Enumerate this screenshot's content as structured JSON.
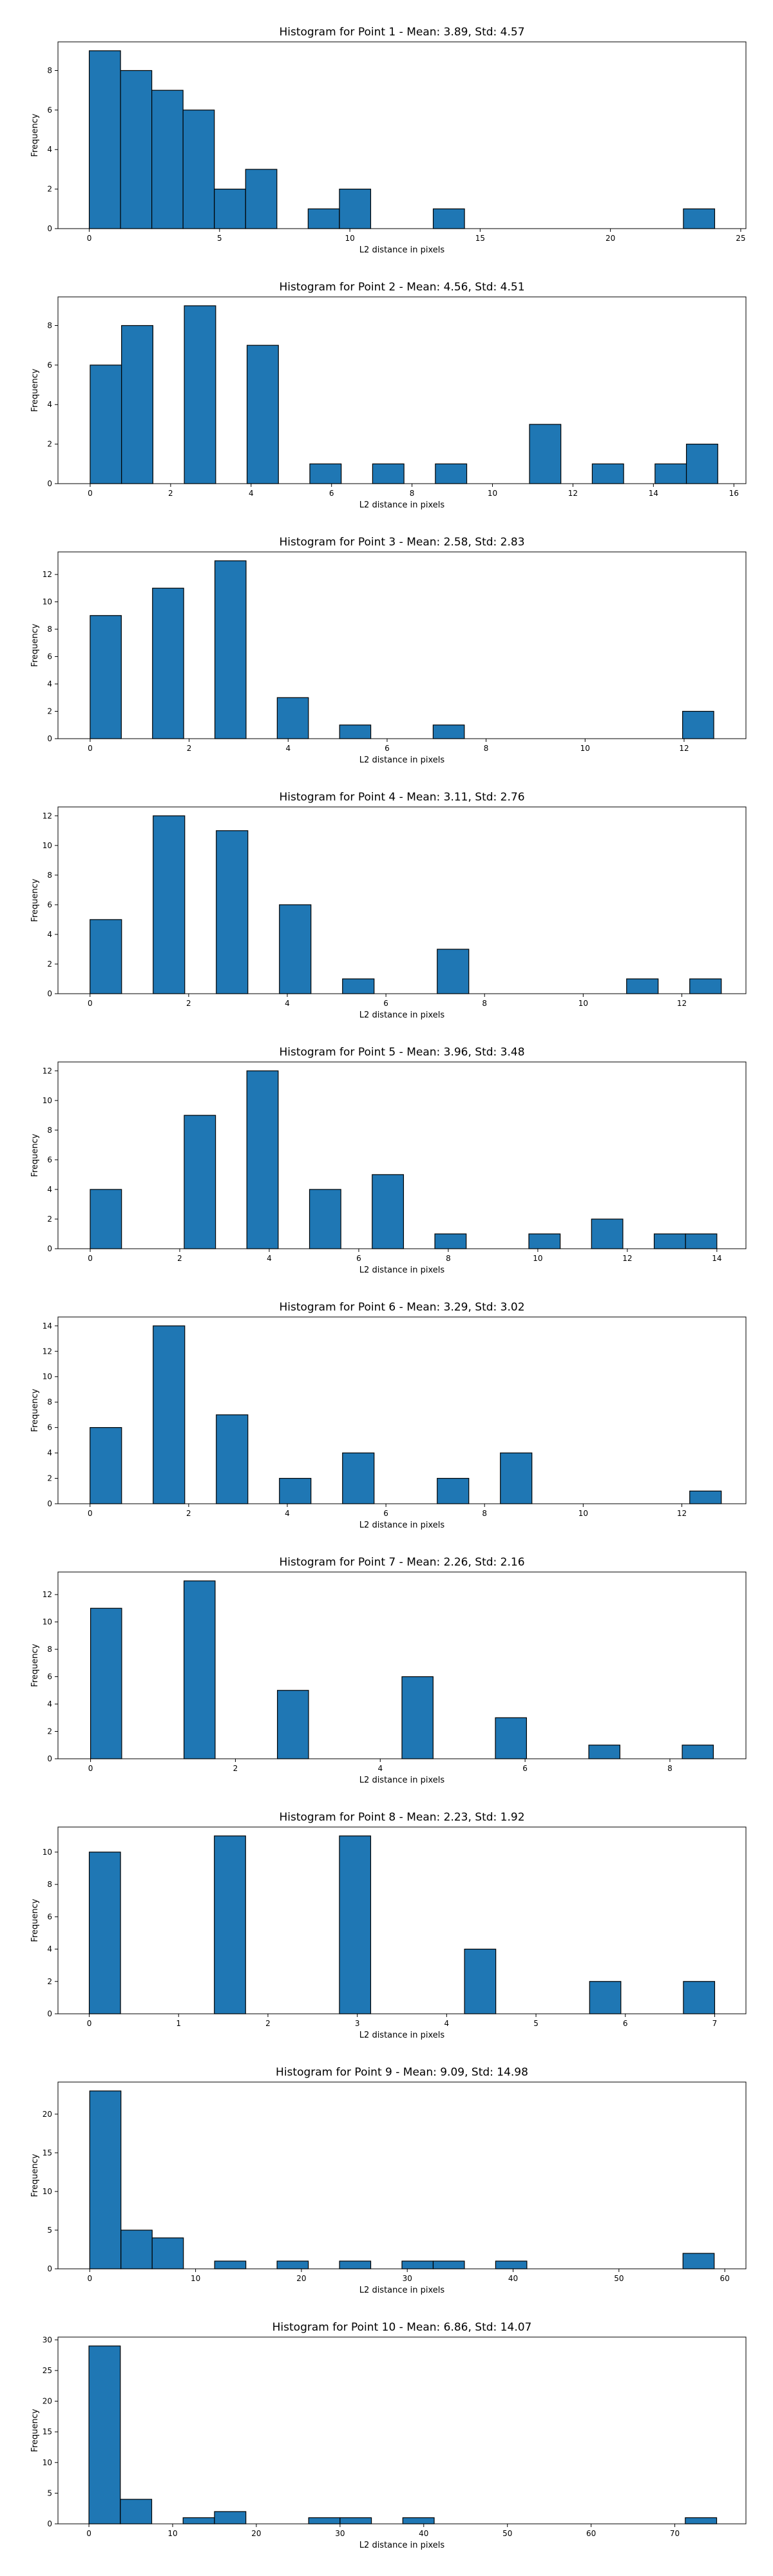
{
  "figure": {
    "type": "histogram-grid",
    "bar_color": "#1f77b4",
    "edge_color": "#000000"
  },
  "chart_data": [
    {
      "type": "bar",
      "title": "Histogram for Point 1 - Mean: 3.89, Std: 4.57",
      "xlabel": "L2 distance in pixels",
      "ylabel": "Frequency",
      "xlim": [
        -1.2,
        25.2
      ],
      "ylim": [
        0,
        9.45
      ],
      "xticks": [
        0,
        5,
        10,
        15,
        20,
        25
      ],
      "yticks": [
        0,
        2,
        4,
        6,
        8
      ],
      "bin_start": 0.0,
      "bin_width": 1.2,
      "counts": [
        9,
        8,
        7,
        6,
        2,
        3,
        0,
        1,
        2,
        0,
        0,
        1,
        0,
        0,
        0,
        0,
        0,
        0,
        0,
        1
      ],
      "grid": false
    },
    {
      "type": "bar",
      "title": "Histogram for Point 2 - Mean: 4.56, Std: 4.51",
      "xlabel": "L2 distance in pixels",
      "ylabel": "Frequency",
      "xlim": [
        -0.8,
        16.3
      ],
      "ylim": [
        0,
        9.45
      ],
      "xticks": [
        0,
        2,
        4,
        6,
        8,
        10,
        12,
        14,
        16
      ],
      "yticks": [
        0,
        2,
        4,
        6,
        8
      ],
      "bin_start": 0.0,
      "bin_width": 0.78,
      "counts": [
        6,
        8,
        0,
        9,
        0,
        7,
        0,
        1,
        0,
        1,
        0,
        1,
        0,
        0,
        3,
        0,
        1,
        0,
        1,
        2
      ],
      "grid": false
    },
    {
      "type": "bar",
      "title": "Histogram for Point 3 - Mean: 2.58, Std: 2.83",
      "xlabel": "L2 distance in pixels",
      "ylabel": "Frequency",
      "xlim": [
        -0.65,
        13.25
      ],
      "ylim": [
        0,
        13.65
      ],
      "xticks": [
        0,
        2,
        4,
        6,
        8,
        10,
        12
      ],
      "yticks": [
        0,
        2,
        4,
        6,
        8,
        10,
        12
      ],
      "bin_start": 0.0,
      "bin_width": 0.63,
      "counts": [
        9,
        0,
        11,
        0,
        13,
        0,
        3,
        0,
        1,
        0,
        0,
        1,
        0,
        0,
        0,
        0,
        0,
        0,
        0,
        2
      ],
      "grid": false
    },
    {
      "type": "bar",
      "title": "Histogram for Point 4 - Mean: 3.11, Std: 2.76",
      "xlabel": "L2 distance in pixels",
      "ylabel": "Frequency",
      "xlim": [
        -0.65,
        13.3
      ],
      "ylim": [
        0,
        12.6
      ],
      "xticks": [
        0,
        2,
        4,
        6,
        8,
        10,
        12
      ],
      "yticks": [
        0,
        2,
        4,
        6,
        8,
        10,
        12
      ],
      "bin_start": 0.0,
      "bin_width": 0.64,
      "counts": [
        5,
        0,
        12,
        0,
        11,
        0,
        6,
        0,
        1,
        0,
        0,
        3,
        0,
        0,
        0,
        0,
        0,
        1,
        0,
        1
      ],
      "grid": false
    },
    {
      "type": "bar",
      "title": "Histogram for Point 5 - Mean: 3.96, Std: 3.48",
      "xlabel": "L2 distance in pixels",
      "ylabel": "Frequency",
      "xlim": [
        -0.72,
        14.65
      ],
      "ylim": [
        0,
        12.6
      ],
      "xticks": [
        0,
        2,
        4,
        6,
        8,
        10,
        12,
        14
      ],
      "yticks": [
        0,
        2,
        4,
        6,
        8,
        10,
        12
      ],
      "bin_start": 0.0,
      "bin_width": 0.7,
      "counts": [
        4,
        0,
        0,
        9,
        0,
        12,
        0,
        4,
        0,
        5,
        0,
        1,
        0,
        0,
        1,
        0,
        2,
        0,
        1,
        1
      ],
      "grid": false
    },
    {
      "type": "bar",
      "title": "Histogram for Point 6 - Mean: 3.29, Std: 3.02",
      "xlabel": "L2 distance in pixels",
      "ylabel": "Frequency",
      "xlim": [
        -0.65,
        13.3
      ],
      "ylim": [
        0,
        14.7
      ],
      "xticks": [
        0,
        2,
        4,
        6,
        8,
        10,
        12
      ],
      "yticks": [
        0,
        2,
        4,
        6,
        8,
        10,
        12,
        14
      ],
      "bin_start": 0.0,
      "bin_width": 0.64,
      "counts": [
        6,
        0,
        14,
        0,
        7,
        0,
        2,
        0,
        4,
        0,
        0,
        2,
        0,
        4,
        0,
        0,
        0,
        0,
        0,
        1
      ],
      "grid": false
    },
    {
      "type": "bar",
      "title": "Histogram for Point 7 - Mean: 2.26, Std: 2.16",
      "xlabel": "L2 distance in pixels",
      "ylabel": "Frequency",
      "xlim": [
        -0.45,
        9.05
      ],
      "ylim": [
        0,
        13.65
      ],
      "xticks": [
        0,
        2,
        4,
        6,
        8
      ],
      "yticks": [
        0,
        2,
        4,
        6,
        8,
        10,
        12
      ],
      "bin_start": 0.0,
      "bin_width": 0.43,
      "counts": [
        11,
        0,
        0,
        13,
        0,
        0,
        5,
        0,
        0,
        0,
        6,
        0,
        0,
        3,
        0,
        0,
        1,
        0,
        0,
        1
      ],
      "grid": false
    },
    {
      "type": "bar",
      "title": "Histogram for Point 8 - Mean: 2.23, Std: 1.92",
      "xlabel": "L2 distance in pixels",
      "ylabel": "Frequency",
      "xlim": [
        -0.35,
        7.35
      ],
      "ylim": [
        0,
        11.55
      ],
      "xticks": [
        0,
        1,
        2,
        3,
        4,
        5,
        6,
        7
      ],
      "yticks": [
        0,
        2,
        4,
        6,
        8,
        10
      ],
      "bin_start": 0.0,
      "bin_width": 0.35,
      "counts": [
        10,
        0,
        0,
        0,
        11,
        0,
        0,
        0,
        11,
        0,
        0,
        0,
        4,
        0,
        0,
        0,
        2,
        0,
        0,
        2
      ],
      "grid": false
    },
    {
      "type": "bar",
      "title": "Histogram for Point 9 - Mean: 9.09, Std: 14.98",
      "xlabel": "L2 distance in pixels",
      "ylabel": "Frequency",
      "xlim": [
        -3.0,
        62.0
      ],
      "ylim": [
        0,
        24.15
      ],
      "xticks": [
        0,
        10,
        20,
        30,
        40,
        50,
        60
      ],
      "yticks": [
        0,
        5,
        10,
        15,
        20
      ],
      "bin_start": 0.0,
      "bin_width": 2.95,
      "counts": [
        23,
        5,
        4,
        0,
        1,
        0,
        1,
        0,
        1,
        0,
        1,
        1,
        0,
        1,
        0,
        0,
        0,
        0,
        0,
        2
      ],
      "grid": false
    },
    {
      "type": "bar",
      "title": "Histogram for Point 10 - Mean: 6.86, Std: 14.07",
      "xlabel": "L2 distance in pixels",
      "ylabel": "Frequency",
      "xlim": [
        -3.7,
        78.5
      ],
      "ylim": [
        0,
        30.45
      ],
      "xticks": [
        0,
        10,
        20,
        30,
        40,
        50,
        60,
        70
      ],
      "yticks": [
        0,
        5,
        10,
        15,
        20,
        25,
        30
      ],
      "bin_start": 0.0,
      "bin_width": 3.75,
      "counts": [
        29,
        4,
        0,
        1,
        2,
        0,
        0,
        1,
        1,
        0,
        1,
        0,
        0,
        0,
        0,
        0,
        0,
        0,
        0,
        1
      ],
      "grid": false
    }
  ]
}
